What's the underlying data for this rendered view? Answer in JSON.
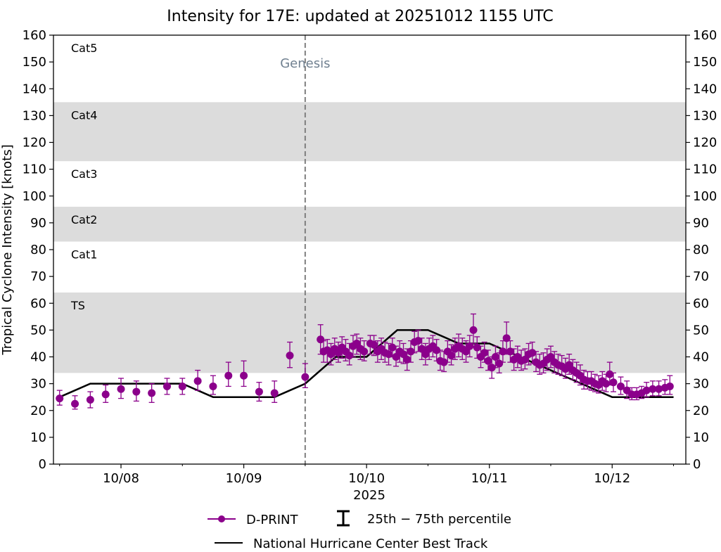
{
  "chart_data": {
    "type": "scatter",
    "title": "Intensity for 17E: updated at 20251012 1155 UTC",
    "ylabel": "Tropical Cyclone Intensity [knots]",
    "xlabel": "2025",
    "ylim": [
      0,
      160
    ],
    "yticks": [
      0,
      10,
      20,
      30,
      40,
      50,
      60,
      70,
      80,
      90,
      100,
      110,
      120,
      130,
      140,
      150,
      160
    ],
    "xlim": [
      7.45,
      12.6
    ],
    "xtick_labels": [
      {
        "x": 8,
        "label": "10/08"
      },
      {
        "x": 9,
        "label": "10/09"
      },
      {
        "x": 10,
        "label": "10/10"
      },
      {
        "x": 11,
        "label": "10/11"
      },
      {
        "x": 12,
        "label": "10/12"
      }
    ],
    "minor_xticks": [
      7.5,
      8.5,
      9.5,
      10.5,
      11.5,
      12.5
    ],
    "category_bands": [
      {
        "label": "TS",
        "from": 34,
        "to": 64,
        "shaded": true
      },
      {
        "label": "Cat1",
        "from": 64,
        "to": 83,
        "shaded": false
      },
      {
        "label": "Cat2",
        "from": 83,
        "to": 96,
        "shaded": true
      },
      {
        "label": "Cat3",
        "from": 96,
        "to": 113,
        "shaded": false
      },
      {
        "label": "Cat4",
        "from": 113,
        "to": 135,
        "shaded": true
      },
      {
        "label": "Cat5",
        "from": 135,
        "to": 160,
        "shaded": false
      }
    ],
    "genesis": {
      "x": 9.5,
      "label": "Genesis"
    },
    "best_track": {
      "name": "National Hurricane Center Best Track",
      "x": [
        7.5,
        7.75,
        8.0,
        8.25,
        8.5,
        8.75,
        9.0,
        9.25,
        9.5,
        9.75,
        10.0,
        10.25,
        10.5,
        10.75,
        11.0,
        11.25,
        11.5,
        11.75,
        12.0,
        12.25,
        12.5
      ],
      "y": [
        25,
        30,
        30,
        30,
        30,
        25,
        25,
        25,
        30,
        40,
        40,
        50,
        50,
        45,
        45,
        40,
        35,
        30,
        25,
        25,
        25
      ]
    },
    "dprint": {
      "name": "D-PRINT",
      "color": "#8b008b",
      "points": [
        {
          "x": 7.5,
          "y": 24.5,
          "lo": 22.0,
          "hi": 27.5
        },
        {
          "x": 7.625,
          "y": 22.5,
          "lo": 20.5,
          "hi": 25.5
        },
        {
          "x": 7.75,
          "y": 24.0,
          "lo": 21.0,
          "hi": 27.0
        },
        {
          "x": 7.875,
          "y": 26.0,
          "lo": 23.0,
          "hi": 29.5
        },
        {
          "x": 8.0,
          "y": 28.0,
          "lo": 24.5,
          "hi": 32.0
        },
        {
          "x": 8.125,
          "y": 27.0,
          "lo": 23.5,
          "hi": 31.0
        },
        {
          "x": 8.25,
          "y": 26.5,
          "lo": 23.0,
          "hi": 30.0
        },
        {
          "x": 8.375,
          "y": 29.0,
          "lo": 26.0,
          "hi": 32.0
        },
        {
          "x": 8.5,
          "y": 29.0,
          "lo": 26.0,
          "hi": 32.0
        },
        {
          "x": 8.625,
          "y": 31.0,
          "lo": 27.5,
          "hi": 35.0
        },
        {
          "x": 8.75,
          "y": 29.0,
          "lo": 26.0,
          "hi": 33.0
        },
        {
          "x": 8.875,
          "y": 33.0,
          "lo": 29.0,
          "hi": 38.0
        },
        {
          "x": 9.0,
          "y": 33.0,
          "lo": 29.0,
          "hi": 38.5
        },
        {
          "x": 9.125,
          "y": 27.0,
          "lo": 23.5,
          "hi": 30.5
        },
        {
          "x": 9.25,
          "y": 26.5,
          "lo": 23.0,
          "hi": 31.0
        },
        {
          "x": 9.375,
          "y": 40.5,
          "lo": 36.0,
          "hi": 45.5
        },
        {
          "x": 9.5,
          "y": 32.5,
          "lo": 28.5,
          "hi": 37.5
        },
        {
          "x": 9.625,
          "y": 46.5,
          "lo": 41.0,
          "hi": 52.0
        },
        {
          "x": 9.65,
          "y": 42.0,
          "lo": 38.0,
          "hi": 46.0
        },
        {
          "x": 9.68,
          "y": 42.5,
          "lo": 38.0,
          "hi": 46.5
        },
        {
          "x": 9.71,
          "y": 41.0,
          "lo": 37.0,
          "hi": 45.0
        },
        {
          "x": 9.74,
          "y": 43.0,
          "lo": 39.0,
          "hi": 47.0
        },
        {
          "x": 9.77,
          "y": 41.5,
          "lo": 38.0,
          "hi": 45.5
        },
        {
          "x": 9.8,
          "y": 43.5,
          "lo": 39.5,
          "hi": 47.5
        },
        {
          "x": 9.83,
          "y": 42.0,
          "lo": 38.5,
          "hi": 46.5
        },
        {
          "x": 9.86,
          "y": 40.5,
          "lo": 37.0,
          "hi": 45.0
        },
        {
          "x": 9.89,
          "y": 44.0,
          "lo": 40.0,
          "hi": 48.0
        },
        {
          "x": 9.92,
          "y": 45.0,
          "lo": 41.0,
          "hi": 48.5
        },
        {
          "x": 9.95,
          "y": 43.0,
          "lo": 39.0,
          "hi": 47.0
        },
        {
          "x": 9.98,
          "y": 42.0,
          "lo": 38.5,
          "hi": 46.0
        },
        {
          "x": 10.03,
          "y": 45.0,
          "lo": 41.0,
          "hi": 48.0
        },
        {
          "x": 10.06,
          "y": 44.5,
          "lo": 40.5,
          "hi": 48.0
        },
        {
          "x": 10.09,
          "y": 42.0,
          "lo": 38.0,
          "hi": 46.0
        },
        {
          "x": 10.12,
          "y": 43.0,
          "lo": 39.0,
          "hi": 47.0
        },
        {
          "x": 10.15,
          "y": 41.5,
          "lo": 38.0,
          "hi": 45.5
        },
        {
          "x": 10.18,
          "y": 41.0,
          "lo": 37.0,
          "hi": 45.0
        },
        {
          "x": 10.21,
          "y": 43.5,
          "lo": 40.0,
          "hi": 47.0
        },
        {
          "x": 10.24,
          "y": 40.0,
          "lo": 36.5,
          "hi": 44.0
        },
        {
          "x": 10.27,
          "y": 42.0,
          "lo": 38.0,
          "hi": 46.0
        },
        {
          "x": 10.3,
          "y": 41.0,
          "lo": 37.5,
          "hi": 45.0
        },
        {
          "x": 10.33,
          "y": 39.0,
          "lo": 35.0,
          "hi": 43.0
        },
        {
          "x": 10.36,
          "y": 42.0,
          "lo": 38.0,
          "hi": 46.0
        },
        {
          "x": 10.39,
          "y": 45.5,
          "lo": 41.5,
          "hi": 49.5
        },
        {
          "x": 10.42,
          "y": 46.0,
          "lo": 42.0,
          "hi": 50.0
        },
        {
          "x": 10.45,
          "y": 43.0,
          "lo": 39.0,
          "hi": 47.0
        },
        {
          "x": 10.48,
          "y": 41.0,
          "lo": 37.0,
          "hi": 45.0
        },
        {
          "x": 10.51,
          "y": 43.0,
          "lo": 39.0,
          "hi": 47.0
        },
        {
          "x": 10.54,
          "y": 44.0,
          "lo": 40.0,
          "hi": 48.0
        },
        {
          "x": 10.57,
          "y": 42.5,
          "lo": 38.5,
          "hi": 46.5
        },
        {
          "x": 10.6,
          "y": 38.5,
          "lo": 35.0,
          "hi": 42.5
        },
        {
          "x": 10.63,
          "y": 38.0,
          "lo": 34.5,
          "hi": 42.0
        },
        {
          "x": 10.66,
          "y": 42.0,
          "lo": 38.0,
          "hi": 46.0
        },
        {
          "x": 10.69,
          "y": 40.5,
          "lo": 37.0,
          "hi": 44.5
        },
        {
          "x": 10.72,
          "y": 43.0,
          "lo": 39.0,
          "hi": 47.0
        },
        {
          "x": 10.75,
          "y": 44.0,
          "lo": 40.0,
          "hi": 48.5
        },
        {
          "x": 10.78,
          "y": 43.0,
          "lo": 39.0,
          "hi": 47.0
        },
        {
          "x": 10.81,
          "y": 42.0,
          "lo": 38.0,
          "hi": 46.0
        },
        {
          "x": 10.84,
          "y": 44.0,
          "lo": 40.0,
          "hi": 48.0
        },
        {
          "x": 10.87,
          "y": 50.0,
          "lo": 45.0,
          "hi": 56.0
        },
        {
          "x": 10.9,
          "y": 43.5,
          "lo": 39.5,
          "hi": 47.5
        },
        {
          "x": 10.93,
          "y": 40.0,
          "lo": 36.0,
          "hi": 44.0
        },
        {
          "x": 10.96,
          "y": 41.5,
          "lo": 38.0,
          "hi": 45.5
        },
        {
          "x": 10.99,
          "y": 38.5,
          "lo": 35.0,
          "hi": 42.5
        },
        {
          "x": 11.02,
          "y": 36.0,
          "lo": 32.0,
          "hi": 40.0
        },
        {
          "x": 11.05,
          "y": 40.0,
          "lo": 36.0,
          "hi": 44.0
        },
        {
          "x": 11.08,
          "y": 37.5,
          "lo": 34.0,
          "hi": 41.5
        },
        {
          "x": 11.11,
          "y": 42.0,
          "lo": 38.0,
          "hi": 46.0
        },
        {
          "x": 11.14,
          "y": 47.0,
          "lo": 41.0,
          "hi": 53.0
        },
        {
          "x": 11.17,
          "y": 42.0,
          "lo": 38.0,
          "hi": 46.0
        },
        {
          "x": 11.2,
          "y": 39.0,
          "lo": 35.0,
          "hi": 43.0
        },
        {
          "x": 11.23,
          "y": 40.0,
          "lo": 36.0,
          "hi": 44.0
        },
        {
          "x": 11.26,
          "y": 38.5,
          "lo": 35.0,
          "hi": 42.5
        },
        {
          "x": 11.29,
          "y": 39.0,
          "lo": 35.5,
          "hi": 43.0
        },
        {
          "x": 11.32,
          "y": 41.0,
          "lo": 37.0,
          "hi": 45.0
        },
        {
          "x": 11.35,
          "y": 41.5,
          "lo": 37.5,
          "hi": 45.5
        },
        {
          "x": 11.38,
          "y": 38.0,
          "lo": 34.5,
          "hi": 42.0
        },
        {
          "x": 11.41,
          "y": 37.0,
          "lo": 33.5,
          "hi": 41.0
        },
        {
          "x": 11.44,
          "y": 37.5,
          "lo": 34.0,
          "hi": 41.5
        },
        {
          "x": 11.47,
          "y": 39.0,
          "lo": 35.0,
          "hi": 43.0
        },
        {
          "x": 11.5,
          "y": 40.0,
          "lo": 36.0,
          "hi": 44.0
        },
        {
          "x": 11.53,
          "y": 38.0,
          "lo": 34.0,
          "hi": 42.0
        },
        {
          "x": 11.56,
          "y": 37.0,
          "lo": 33.5,
          "hi": 41.0
        },
        {
          "x": 11.59,
          "y": 36.5,
          "lo": 33.0,
          "hi": 40.5
        },
        {
          "x": 11.62,
          "y": 35.5,
          "lo": 32.0,
          "hi": 39.5
        },
        {
          "x": 11.65,
          "y": 37.0,
          "lo": 33.5,
          "hi": 41.0
        },
        {
          "x": 11.68,
          "y": 35.0,
          "lo": 31.5,
          "hi": 39.0
        },
        {
          "x": 11.71,
          "y": 34.0,
          "lo": 30.5,
          "hi": 38.0
        },
        {
          "x": 11.74,
          "y": 33.0,
          "lo": 29.5,
          "hi": 37.0
        },
        {
          "x": 11.77,
          "y": 31.5,
          "lo": 28.0,
          "hi": 35.0
        },
        {
          "x": 11.8,
          "y": 31.0,
          "lo": 28.0,
          "hi": 34.5
        },
        {
          "x": 11.83,
          "y": 31.0,
          "lo": 27.5,
          "hi": 34.5
        },
        {
          "x": 11.86,
          "y": 30.0,
          "lo": 27.0,
          "hi": 33.5
        },
        {
          "x": 11.89,
          "y": 29.5,
          "lo": 26.5,
          "hi": 33.0
        },
        {
          "x": 11.92,
          "y": 31.0,
          "lo": 27.5,
          "hi": 34.5
        },
        {
          "x": 11.95,
          "y": 30.0,
          "lo": 27.0,
          "hi": 33.5
        },
        {
          "x": 11.98,
          "y": 33.5,
          "lo": 29.5,
          "hi": 38.0
        },
        {
          "x": 12.01,
          "y": 30.5,
          "lo": 27.0,
          "hi": 34.0
        },
        {
          "x": 12.07,
          "y": 29.0,
          "lo": 26.0,
          "hi": 32.5
        },
        {
          "x": 12.12,
          "y": 27.5,
          "lo": 24.5,
          "hi": 31.0
        },
        {
          "x": 12.16,
          "y": 26.0,
          "lo": 24.0,
          "hi": 28.5
        },
        {
          "x": 12.2,
          "y": 26.0,
          "lo": 24.0,
          "hi": 28.5
        },
        {
          "x": 12.24,
          "y": 26.5,
          "lo": 24.5,
          "hi": 29.0
        },
        {
          "x": 12.28,
          "y": 27.5,
          "lo": 25.0,
          "hi": 30.5
        },
        {
          "x": 12.33,
          "y": 28.0,
          "lo": 25.5,
          "hi": 31.0
        },
        {
          "x": 12.38,
          "y": 28.0,
          "lo": 25.5,
          "hi": 31.0
        },
        {
          "x": 12.43,
          "y": 28.5,
          "lo": 26.0,
          "hi": 31.5
        },
        {
          "x": 12.47,
          "y": 29.0,
          "lo": 26.0,
          "hi": 33.0
        }
      ]
    },
    "legend": {
      "dprint_label": "D-PRINT",
      "percentile_label": "25th − 75th percentile",
      "best_track_label": "National Hurricane Center Best Track",
      "placement": "bottom-center"
    },
    "colors": {
      "band": "#dcdcdc",
      "genesis_line": "#7f7f7f",
      "genesis_text": "#708090",
      "best_track": "#000000"
    }
  }
}
